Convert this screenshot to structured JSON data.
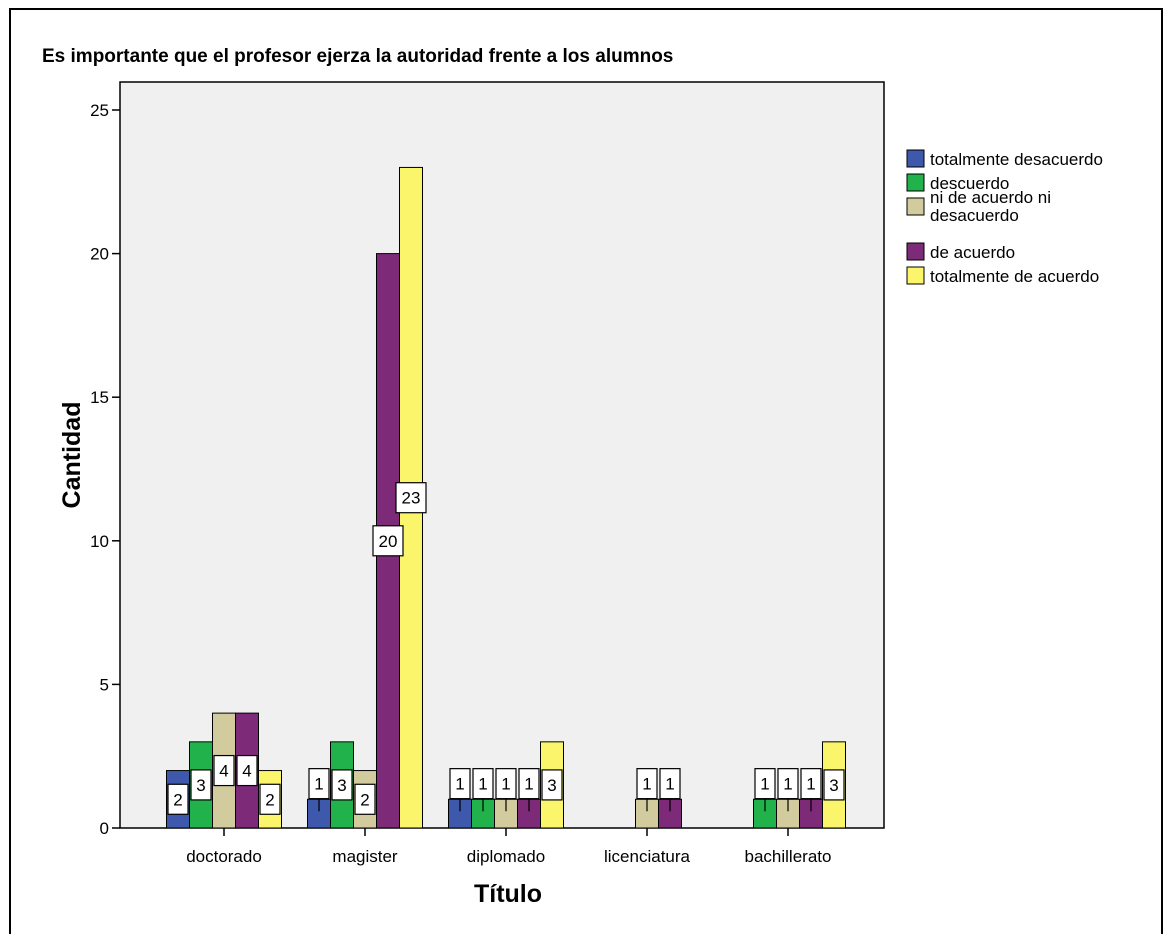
{
  "chart_data": {
    "type": "bar",
    "title": "Es importante que el profesor ejerza la autoridad frente a los alumnos",
    "xlabel": "Título",
    "ylabel": "Cantidad",
    "ylim": [
      0,
      25
    ],
    "yticks": [
      0,
      5,
      10,
      15,
      20,
      25
    ],
    "grid": false,
    "legend_position": "right",
    "categories": [
      "doctorado",
      "magister",
      "diplomado",
      "licenciatura",
      "bachillerato"
    ],
    "series": [
      {
        "name": "totalmente desacuerdo",
        "color": "#3e58ac",
        "values": [
          2,
          1,
          1,
          0,
          0
        ]
      },
      {
        "name": "descuerdo",
        "color": "#21b24c",
        "values": [
          3,
          3,
          1,
          0,
          1
        ]
      },
      {
        "name": "ni de acuerdo ni desacuerdo",
        "color": "#d1cb9e",
        "values": [
          4,
          2,
          1,
          1,
          1
        ]
      },
      {
        "name": "de acuerdo",
        "color": "#7d2a79",
        "values": [
          4,
          20,
          1,
          1,
          1
        ]
      },
      {
        "name": "totalmente de acuerdo",
        "color": "#fbf56c",
        "values": [
          2,
          23,
          3,
          0,
          3
        ]
      }
    ],
    "plot_background": "#f0f0f0"
  }
}
